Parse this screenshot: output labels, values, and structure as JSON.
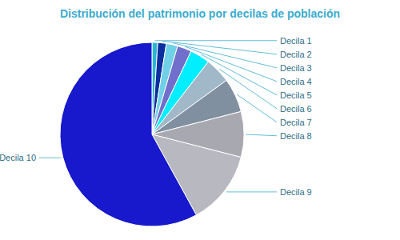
{
  "chart_data": {
    "type": "pie",
    "title": "Distribución del patrimonio por decilas de población",
    "categories": [
      "Decila 1",
      "Decila 2",
      "Decila 3",
      "Decila 4",
      "Decila 5",
      "Decila 6",
      "Decila 7",
      "Decila 8",
      "Decila 9",
      "Decila 10"
    ],
    "values": [
      1.0,
      1.5,
      2.0,
      2.5,
      3.5,
      4.5,
      6.0,
      8.0,
      13.0,
      58.0
    ],
    "colors": [
      "#29B6D2",
      "#0D2EA0",
      "#70D0E8",
      "#7070CC",
      "#00EEFF",
      "#A0B8C8",
      "#8090A0",
      "#A8A8B0",
      "#B8B8C0",
      "#1818CC"
    ]
  }
}
